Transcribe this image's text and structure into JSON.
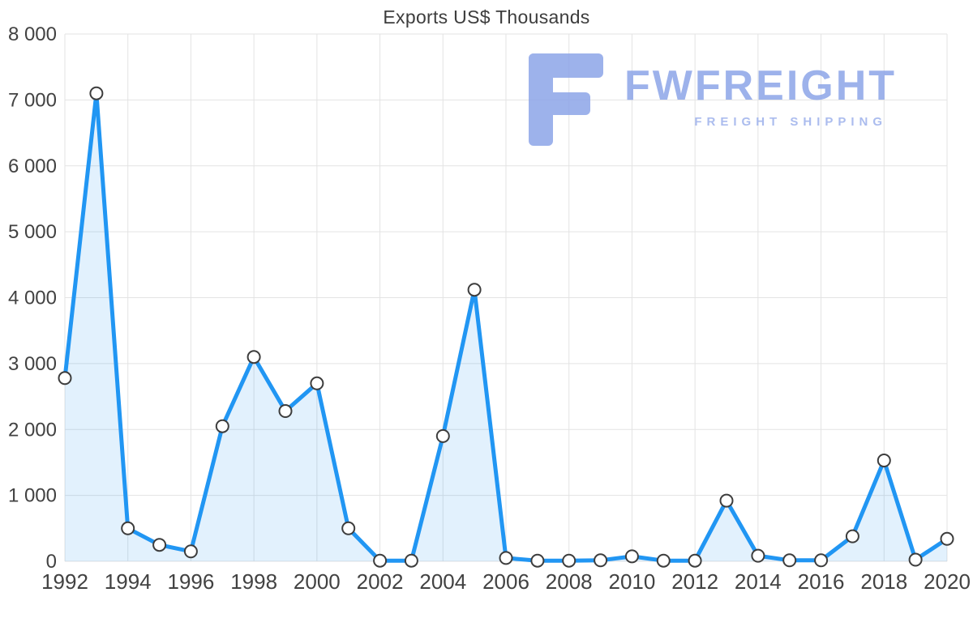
{
  "watermark": {
    "brand": "FWFREIGHT",
    "tagline": "FREIGHT SHIPPING",
    "color": "#8da5e8"
  },
  "chart_data": {
    "type": "area",
    "title": "Exports US$ Thousands",
    "x": [
      1992,
      1993,
      1994,
      1995,
      1996,
      1997,
      1998,
      1999,
      2000,
      2001,
      2002,
      2003,
      2004,
      2005,
      2006,
      2007,
      2008,
      2009,
      2010,
      2011,
      2012,
      2013,
      2014,
      2015,
      2016,
      2017,
      2018,
      2019,
      2020
    ],
    "values": [
      2780,
      7100,
      500,
      250,
      150,
      2050,
      3100,
      2280,
      2700,
      500,
      10,
      10,
      1900,
      4120,
      50,
      10,
      10,
      15,
      75,
      10,
      10,
      920,
      85,
      15,
      15,
      380,
      1530,
      25,
      340
    ],
    "ylim": [
      0,
      8000
    ],
    "y_ticks": [
      0,
      1000,
      2000,
      3000,
      4000,
      5000,
      6000,
      7000,
      8000
    ],
    "y_tick_labels": [
      "0",
      "1 000",
      "2 000",
      "3 000",
      "4 000",
      "5 000",
      "6 000",
      "7 000",
      "8 000"
    ],
    "x_tick_step": 2,
    "grid": true,
    "legend": "none",
    "line_color": "#2196f3",
    "fill_color": "rgba(33,150,243,0.13)",
    "marker_fill": "#ffffff",
    "marker_stroke": "#3d3d3d"
  }
}
